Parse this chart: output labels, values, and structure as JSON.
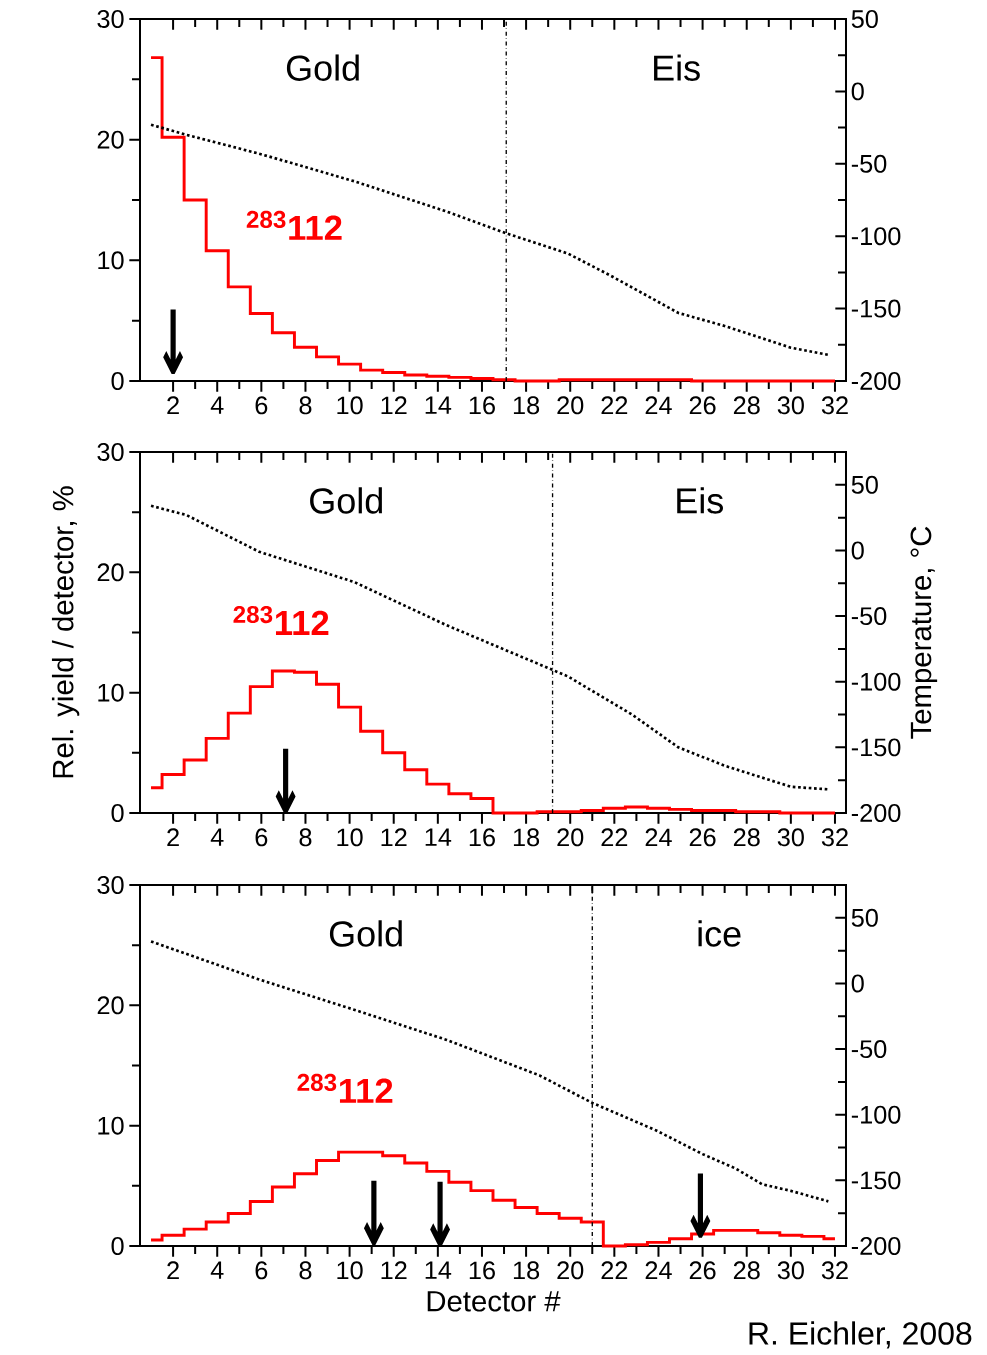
{
  "chart_data": [
    {
      "type": "histogram",
      "bins": [
        1,
        1.5,
        2.5,
        3.5,
        4.5,
        5.5,
        6.5,
        7.5,
        8.5,
        9.5,
        10.5,
        11.5,
        12.5,
        13.5,
        14.5,
        15.5,
        16.5,
        17.5,
        18.5,
        19.5,
        20.5,
        21.5,
        22.5,
        23.5,
        24.5,
        25.5,
        26.5,
        27.5,
        28.5,
        29.5,
        30.5,
        31.5,
        32
      ],
      "series": [
        {
          "name": "$^{283}$112",
          "color": "#ff0000",
          "values": [
            26.8,
            20.2,
            15.0,
            10.8,
            7.8,
            5.6,
            4.0,
            2.8,
            2.0,
            1.4,
            0.9,
            0.7,
            0.5,
            0.4,
            0.3,
            0.2,
            0.1,
            0,
            0,
            0.1,
            0.1,
            0.1,
            0.1,
            0.1,
            0.1,
            0,
            0,
            0,
            0,
            0,
            0,
            0
          ]
        },
        {
          "type": "line",
          "axis": "y2",
          "color": "#000000",
          "line_style": "dotted",
          "x": [
            1,
            2.6,
            5.9,
            10.2,
            14.4,
            17.1,
            19.9,
            21.8,
            24.9,
            27.0,
            30.0,
            31.7
          ],
          "values": [
            -23,
            -30,
            -43,
            -62,
            -83,
            -98,
            -112,
            -127,
            -153,
            -162,
            -177,
            -182
          ]
        }
      ],
      "xlim": [
        0.5,
        32.5
      ],
      "xticks": [
        2,
        4,
        6,
        8,
        10,
        12,
        14,
        16,
        18,
        20,
        22,
        24,
        26,
        28,
        30,
        32
      ],
      "ylim": [
        0,
        30
      ],
      "yticks": [
        0,
        10,
        20,
        30
      ],
      "y2lim": [
        -200,
        50
      ],
      "y2ticks": [
        -200,
        -150,
        -100,
        -50,
        0,
        50
      ],
      "ref_lines": [
        {
          "axis": "x",
          "value": 17.1,
          "line_style": "dashed",
          "color": "#000000"
        }
      ],
      "annotations": [
        "Gold",
        "Eis",
        "↓"
      ]
    },
    {
      "type": "histogram",
      "bins": [
        1,
        1.5,
        2.5,
        3.5,
        4.5,
        5.5,
        6.5,
        7.5,
        8.5,
        9.5,
        10.5,
        11.5,
        12.5,
        13.5,
        14.5,
        15.5,
        16.5,
        17.5,
        18.5,
        19.5,
        20.5,
        21.5,
        22.5,
        23.5,
        24.5,
        25.5,
        26.5,
        27.5,
        28.5,
        29.5,
        30.5,
        31.5,
        32
      ],
      "series": [
        {
          "name": "$^{283}$112",
          "color": "#ff0000",
          "values": [
            2.1,
            3.2,
            4.4,
            6.2,
            8.3,
            10.5,
            11.8,
            11.7,
            10.7,
            8.8,
            6.8,
            5.0,
            3.6,
            2.4,
            1.6,
            1.2,
            0,
            0,
            0.1,
            0.1,
            0.2,
            0.4,
            0.5,
            0.4,
            0.3,
            0.2,
            0.2,
            0.1,
            0.1,
            0,
            0,
            0
          ]
        },
        {
          "type": "line",
          "axis": "y2",
          "color": "#000000",
          "line_style": "dotted",
          "x": [
            1,
            2.6,
            5.9,
            10.2,
            14.4,
            19.2,
            19.9,
            22.8,
            24.9,
            27.0,
            30.0,
            31.7
          ],
          "values": [
            34,
            27,
            -1,
            -24,
            -57,
            -91,
            -96,
            -125,
            -150,
            -164,
            -180,
            -182
          ]
        }
      ],
      "xlim": [
        0.5,
        32.5
      ],
      "xticks": [
        2,
        4,
        6,
        8,
        10,
        12,
        14,
        16,
        18,
        20,
        22,
        24,
        26,
        28,
        30,
        32
      ],
      "ylim": [
        0,
        30
      ],
      "yticks": [
        0,
        10,
        20,
        30
      ],
      "y2lim": [
        -200,
        75
      ],
      "y2ticks": [
        -200,
        -150,
        -100,
        -50,
        0,
        50
      ],
      "ylabel": "Rel. yield / detector, %",
      "y2label": "Temperature, °C",
      "ref_lines": [
        {
          "axis": "x",
          "value": 19.2,
          "line_style": "dashed",
          "color": "#000000"
        }
      ],
      "annotations": [
        "Gold",
        "Eis",
        "↓"
      ]
    },
    {
      "type": "histogram",
      "bins": [
        1,
        1.5,
        2.5,
        3.5,
        4.5,
        5.5,
        6.5,
        7.5,
        8.5,
        9.5,
        10.5,
        11.5,
        12.5,
        13.5,
        14.5,
        15.5,
        16.5,
        17.5,
        18.5,
        19.5,
        20.5,
        21.5,
        22.5,
        23.5,
        24.5,
        25.5,
        26.5,
        27.5,
        28.5,
        29.5,
        30.5,
        31.5,
        32
      ],
      "series": [
        {
          "name": "$^{283}$112",
          "color": "#ff0000",
          "values": [
            0.5,
            0.9,
            1.4,
            2.0,
            2.7,
            3.7,
            4.9,
            6.0,
            7.1,
            7.8,
            7.8,
            7.5,
            6.9,
            6.2,
            5.3,
            4.6,
            3.8,
            3.2,
            2.7,
            2.3,
            2.0,
            0,
            0.1,
            0.3,
            0.6,
            1.0,
            1.3,
            1.3,
            1.1,
            0.9,
            0.8,
            0.6
          ]
        },
        {
          "type": "line",
          "axis": "y2",
          "color": "#000000",
          "line_style": "dotted",
          "x": [
            1,
            5.9,
            10.2,
            14.4,
            18.6,
            21.0,
            23.9,
            26.0,
            27.5,
            28.7,
            30.0,
            31.7
          ],
          "values": [
            32,
            3,
            -20,
            -43,
            -70,
            -91,
            -112,
            -130,
            -141,
            -153,
            -158,
            -166
          ]
        }
      ],
      "xlim": [
        0.5,
        32.5
      ],
      "xticks": [
        2,
        4,
        6,
        8,
        10,
        12,
        14,
        16,
        18,
        20,
        22,
        24,
        26,
        28,
        30,
        32
      ],
      "ylim": [
        0,
        30
      ],
      "yticks": [
        0,
        10,
        20,
        30
      ],
      "y2lim": [
        -200,
        75
      ],
      "y2ticks": [
        -200,
        -150,
        -100,
        -50,
        0,
        50
      ],
      "xlabel": "Detector #",
      "ref_lines": [
        {
          "axis": "x",
          "value": 21.0,
          "line_style": "dashed",
          "color": "#000000"
        }
      ],
      "annotations": [
        "Gold",
        "ice",
        "↓",
        "↓",
        "↓",
        "R. Eichler, 2008"
      ]
    }
  ]
}
